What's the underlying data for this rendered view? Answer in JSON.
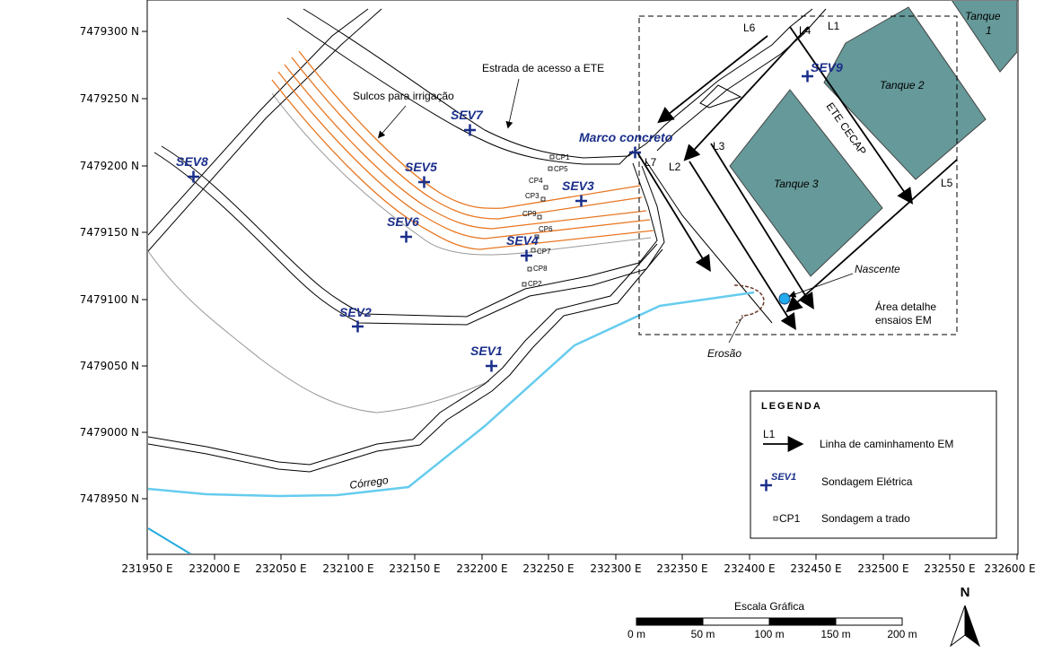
{
  "axes": {
    "y_ticks": [
      "7479300 N",
      "7479250 N",
      "7479200 N",
      "7479150 N",
      "7479100 N",
      "7479050 N",
      "7479000 N",
      "7478950 N"
    ],
    "x_ticks": [
      "231950 E",
      "232000 E",
      "232050 E",
      "232100 E",
      "232150 E",
      "232200 E",
      "232250 E",
      "232300 E",
      "232350 E",
      "232400 E",
      "232450 E",
      "232500 E",
      "232550 E",
      "232600 E"
    ]
  },
  "sev_points": [
    "SEV1",
    "SEV2",
    "SEV3",
    "SEV4",
    "SEV5",
    "SEV6",
    "SEV7",
    "SEV8",
    "SEV9"
  ],
  "cp_points": [
    "CP1",
    "CP5",
    "CP4",
    "CP3",
    "CP9",
    "CP6",
    "CP7",
    "CP8",
    "CP2"
  ],
  "lines": [
    "L1",
    "L2",
    "L3",
    "L4",
    "L5",
    "L6",
    "L7"
  ],
  "tanks": {
    "t1": "Tanque",
    "t1_num": "1",
    "t2": "Tanque 2",
    "t3": "Tanque 3"
  },
  "labels": {
    "road": "Estrada de acesso a ETE",
    "furrows": "Sulcos para irrigação",
    "marker": "Marco concreto",
    "ete": "ETE CECAP",
    "spring": "Nascente",
    "erosion": "Erosão",
    "stream": "Córrego",
    "detail_area_1": "Área detalhe",
    "detail_area_2": "ensaios EM"
  },
  "legend": {
    "title": "LEGENDA",
    "em_line_code": "L1",
    "em_line": "Linha de caminhamento EM",
    "sev_code": "SEV1",
    "sev": "Sondagem Elétrica",
    "cp_code": "CP1",
    "cp": "Sondagem a trado"
  },
  "scale": {
    "title": "Escala Gráfica",
    "ticks": [
      "0 m",
      "50 m",
      "100 m",
      "150 m",
      "200 m"
    ]
  },
  "north": "N",
  "colors": {
    "tank": "#669999",
    "stream": "#66ccee",
    "furrow": "#e87722",
    "sev": "#1a2f8a",
    "spring": "#22aaee",
    "erosion": "#6b3a2a"
  }
}
